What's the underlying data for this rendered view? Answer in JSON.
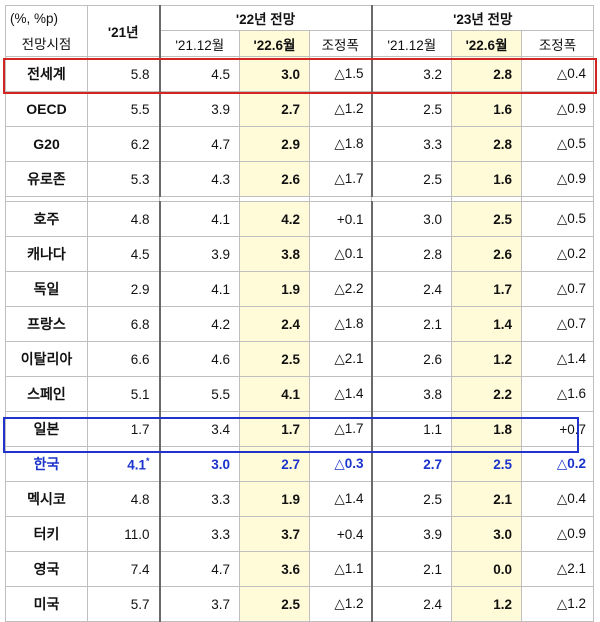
{
  "header": {
    "unit": "(%, %p)",
    "col_country": "전망시점",
    "col_2021": "'21년",
    "group_2022": "'22년 전망",
    "group_2023": "'23년 전망",
    "sub_prev": "'21.12월",
    "sub_new": "'22.6월",
    "sub_adj": "조정폭"
  },
  "group_a": [
    {
      "name": "전세계",
      "y21": "5.8",
      "p22_prev": "4.5",
      "p22_new": "3.0",
      "p22_adj": "△1.5",
      "p23_prev": "3.2",
      "p23_new": "2.8",
      "p23_adj": "△0.4"
    },
    {
      "name": "OECD",
      "y21": "5.5",
      "p22_prev": "3.9",
      "p22_new": "2.7",
      "p22_adj": "△1.2",
      "p23_prev": "2.5",
      "p23_new": "1.6",
      "p23_adj": "△0.9"
    },
    {
      "name": "G20",
      "y21": "6.2",
      "p22_prev": "4.7",
      "p22_new": "2.9",
      "p22_adj": "△1.8",
      "p23_prev": "3.3",
      "p23_new": "2.8",
      "p23_adj": "△0.5"
    },
    {
      "name": "유로존",
      "y21": "5.3",
      "p22_prev": "4.3",
      "p22_new": "2.6",
      "p22_adj": "△1.7",
      "p23_prev": "2.5",
      "p23_new": "1.6",
      "p23_adj": "△0.9"
    }
  ],
  "group_b": [
    {
      "name": "호주",
      "y21": "4.8",
      "p22_prev": "4.1",
      "p22_new": "4.2",
      "p22_adj": "+0.1",
      "p23_prev": "3.0",
      "p23_new": "2.5",
      "p23_adj": "△0.5"
    },
    {
      "name": "캐나다",
      "y21": "4.5",
      "p22_prev": "3.9",
      "p22_new": "3.8",
      "p22_adj": "△0.1",
      "p23_prev": "2.8",
      "p23_new": "2.6",
      "p23_adj": "△0.2"
    },
    {
      "name": "독일",
      "y21": "2.9",
      "p22_prev": "4.1",
      "p22_new": "1.9",
      "p22_adj": "△2.2",
      "p23_prev": "2.4",
      "p23_new": "1.7",
      "p23_adj": "△0.7"
    },
    {
      "name": "프랑스",
      "y21": "6.8",
      "p22_prev": "4.2",
      "p22_new": "2.4",
      "p22_adj": "△1.8",
      "p23_prev": "2.1",
      "p23_new": "1.4",
      "p23_adj": "△0.7"
    },
    {
      "name": "이탈리아",
      "y21": "6.6",
      "p22_prev": "4.6",
      "p22_new": "2.5",
      "p22_adj": "△2.1",
      "p23_prev": "2.6",
      "p23_new": "1.2",
      "p23_adj": "△1.4"
    },
    {
      "name": "스페인",
      "y21": "5.1",
      "p22_prev": "5.5",
      "p22_new": "4.1",
      "p22_adj": "△1.4",
      "p23_prev": "3.8",
      "p23_new": "2.2",
      "p23_adj": "△1.6"
    },
    {
      "name": "일본",
      "y21": "1.7",
      "p22_prev": "3.4",
      "p22_new": "1.7",
      "p22_adj": "△1.7",
      "p23_prev": "1.1",
      "p23_new": "1.8",
      "p23_adj": "+0.7"
    },
    {
      "name": "한국",
      "y21": "4.1",
      "y21_mark": "*",
      "p22_prev": "3.0",
      "p22_new": "2.7",
      "p22_adj": "△0.3",
      "p23_prev": "2.7",
      "p23_new": "2.5",
      "p23_adj": "△0.2"
    },
    {
      "name": "멕시코",
      "y21": "4.8",
      "p22_prev": "3.3",
      "p22_new": "1.9",
      "p22_adj": "△1.4",
      "p23_prev": "2.5",
      "p23_new": "2.1",
      "p23_adj": "△0.4"
    },
    {
      "name": "터키",
      "y21": "11.0",
      "p22_prev": "3.3",
      "p22_new": "3.7",
      "p22_adj": "+0.4",
      "p23_prev": "3.9",
      "p23_new": "3.0",
      "p23_adj": "△0.9"
    },
    {
      "name": "영국",
      "y21": "7.4",
      "p22_prev": "4.7",
      "p22_new": "3.6",
      "p22_adj": "△1.1",
      "p23_prev": "2.1",
      "p23_new": "0.0",
      "p23_adj": "△2.1"
    },
    {
      "name": "미국",
      "y21": "5.7",
      "p22_prev": "3.7",
      "p22_new": "2.5",
      "p22_adj": "△1.2",
      "p23_prev": "2.4",
      "p23_new": "1.2",
      "p23_adj": "△1.2"
    }
  ]
}
